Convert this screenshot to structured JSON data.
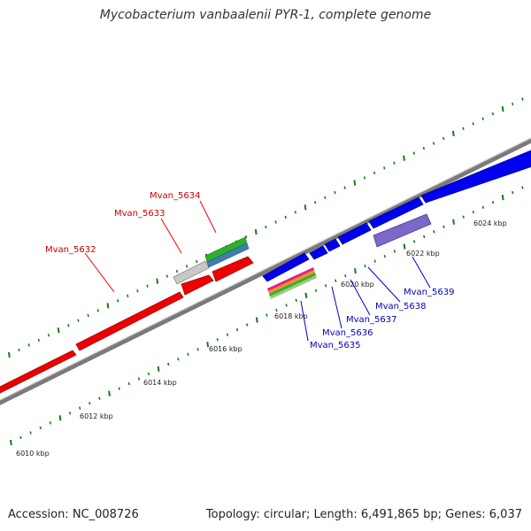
{
  "title": "Mycobacterium vanbaalenii PYR-1, complete genome",
  "footer": {
    "accession": "Accession: NC_008726",
    "summary": "Topology: circular; Length: 6,491,865 bp; Genes: 6,037"
  },
  "colors": {
    "forward_gene": "#ee0000",
    "reverse_gene": "#0000ee",
    "backbone": "#8a8a8a",
    "tick": "#1a7a1a",
    "forward_label": "#cc0000",
    "reverse_label": "#0000bb",
    "purple_feature": "#7b68c8",
    "grey_feature": "#c8c8c8"
  },
  "scale": {
    "unit": "kbp",
    "labels": [
      "6010 kbp",
      "6012 kbp",
      "6014 kbp",
      "6016 kbp",
      "6018 kbp",
      "6020 kbp",
      "6022 kbp",
      "6024 kbp"
    ]
  },
  "genes": [
    {
      "label": "Mvan_5632",
      "strand": "forward"
    },
    {
      "label": "Mvan_5633",
      "strand": "forward"
    },
    {
      "label": "Mvan_5634",
      "strand": "forward"
    },
    {
      "label": "Mvan_5635",
      "strand": "reverse"
    },
    {
      "label": "Mvan_5636",
      "strand": "reverse"
    },
    {
      "label": "Mvan_5637",
      "strand": "reverse"
    },
    {
      "label": "Mvan_5638",
      "strand": "reverse"
    },
    {
      "label": "Mvan_5639",
      "strand": "reverse"
    }
  ]
}
